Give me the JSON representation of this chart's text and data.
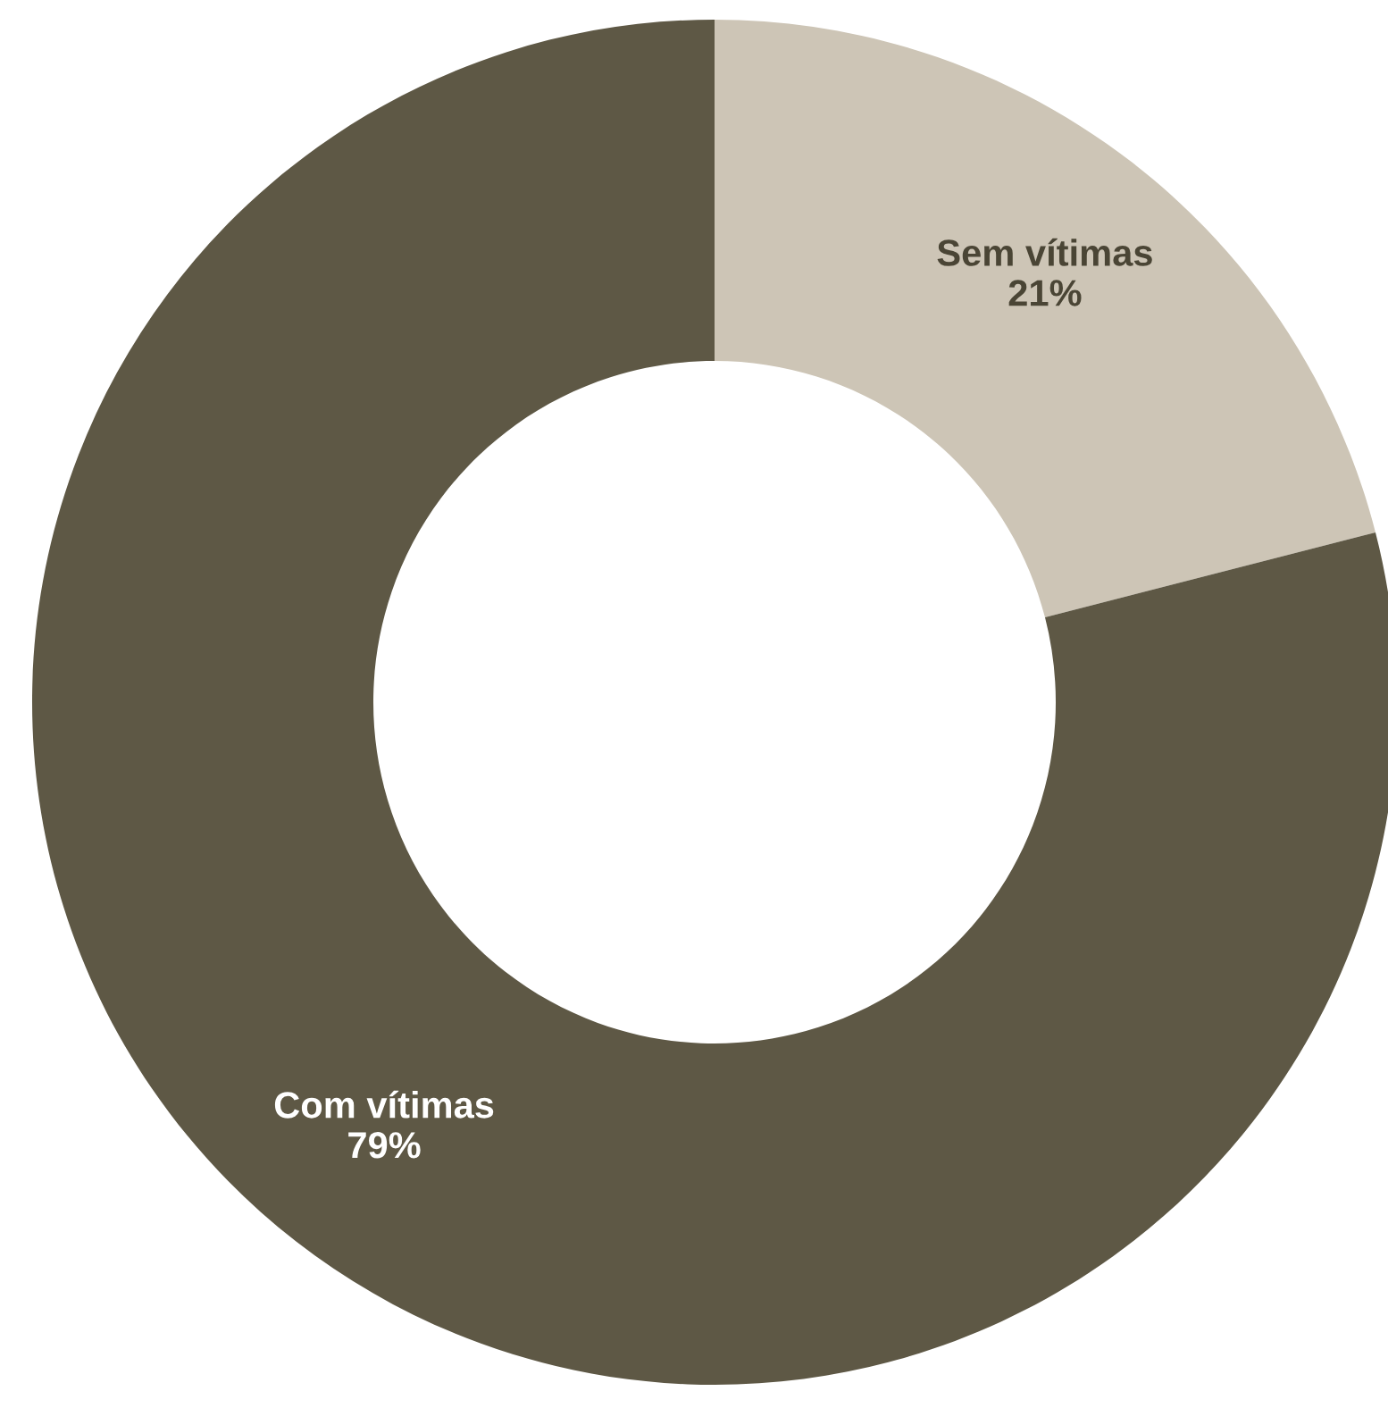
{
  "chart_data": {
    "type": "donut",
    "categories": [
      "Sem vítimas",
      "Com vítimas"
    ],
    "values": [
      21,
      79
    ],
    "colors": [
      "#cdc5b6",
      "#5e5845"
    ],
    "value_labels": [
      "21%",
      "79%"
    ]
  }
}
